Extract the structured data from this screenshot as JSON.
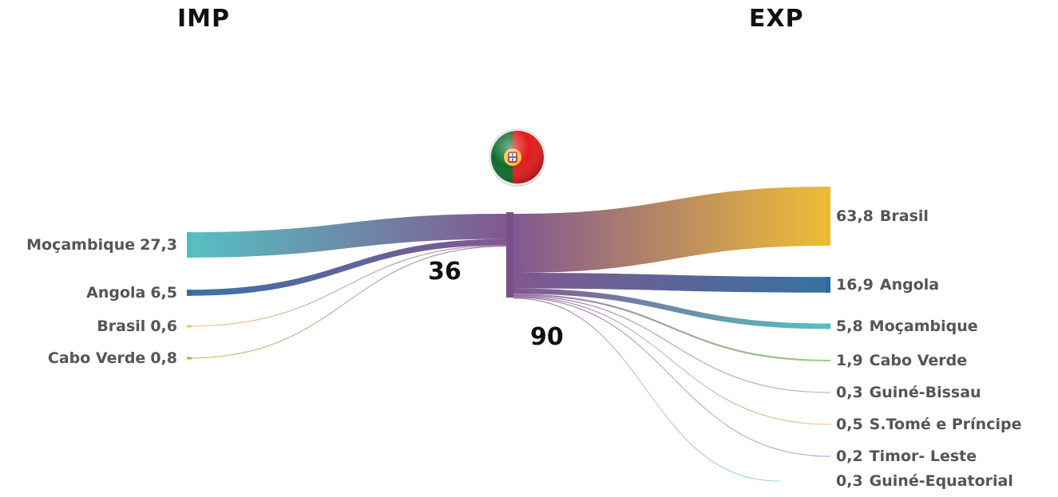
{
  "headers": {
    "imports": "IMP",
    "exports": "EXP"
  },
  "totals": {
    "imports": "36",
    "exports": "90"
  },
  "flag_icon": "portugal-flag-icon",
  "imports": [
    {
      "country": "Moçambique",
      "value": 27.3,
      "label": "27,3",
      "color": "#4dbdbf"
    },
    {
      "country": "Angola",
      "value": 6.5,
      "label": "6,5",
      "color": "#2f6aa3"
    },
    {
      "country": "Brasil",
      "value": 0.6,
      "label": "0,6",
      "color": "#f0c36a"
    },
    {
      "country": "Cabo Verde",
      "value": 0.8,
      "label": "0,8",
      "color": "#8cc63e"
    }
  ],
  "exports": [
    {
      "country": "Brasil",
      "value": 63.8,
      "label": "63,8",
      "color": "#efb92a"
    },
    {
      "country": "Angola",
      "value": 16.9,
      "label": "16,9",
      "color": "#2c6a9c"
    },
    {
      "country": "Moçambique",
      "value": 5.8,
      "label": "5,8",
      "color": "#4dbdbf"
    },
    {
      "country": "Cabo Verde",
      "value": 1.9,
      "label": "1,9",
      "color": "#7bbf57"
    },
    {
      "country": "Guiné-Bissau",
      "value": 0.3,
      "label": "0,3",
      "color": "#b99ad1"
    },
    {
      "country": "S.Tomé e Príncipe",
      "value": 0.5,
      "label": "0,5",
      "color": "#f2b26b"
    },
    {
      "country": "Timor- Leste",
      "value": 0.2,
      "label": "0,2",
      "color": "#9a8fd0"
    },
    {
      "country": "Guiné-Equatorial",
      "value": 0.3,
      "label": "0,3",
      "color": "#7fcbc9"
    }
  ],
  "colors": {
    "hub": "#7b4f8a"
  }
}
